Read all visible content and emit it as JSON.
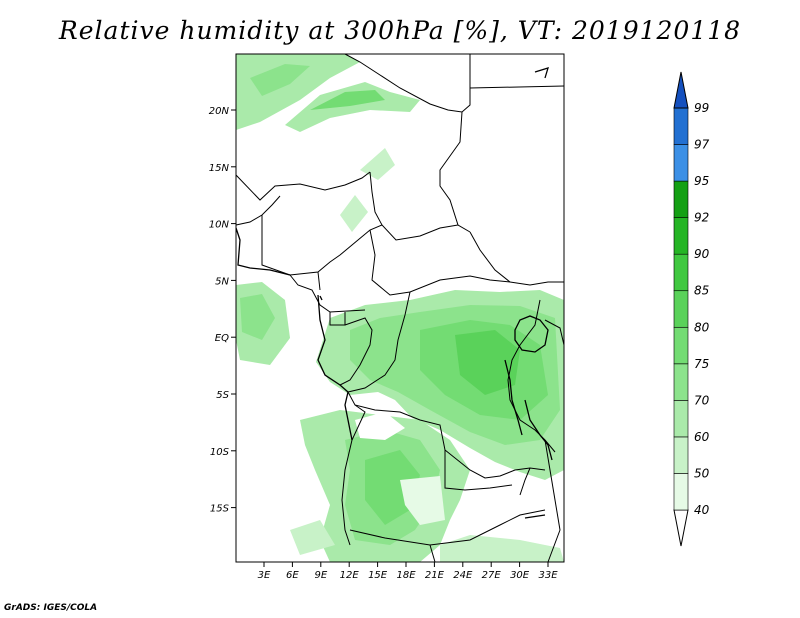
{
  "title": "Relative humidity at 300hPa [%], VT: 2019120118",
  "credit": "GrADS: IGES/COLA",
  "map": {
    "lat_ticks": [
      "20N",
      "15N",
      "10N",
      "5N",
      "EQ",
      "5S",
      "10S",
      "15S"
    ],
    "lon_ticks": [
      "3E",
      "6E",
      "9E",
      "12E",
      "15E",
      "18E",
      "21E",
      "24E",
      "27E",
      "30E",
      "33E"
    ]
  },
  "colorbar": {
    "levels": [
      "40",
      "50",
      "60",
      "70",
      "75",
      "80",
      "85",
      "90",
      "92",
      "95",
      "97",
      "99"
    ],
    "colors": [
      "#e6fae6",
      "#c8f2c8",
      "#aaeaaa",
      "#8ce38c",
      "#73dc73",
      "#5ad25a",
      "#40c840",
      "#25b525",
      "#14a014",
      "#3c90e6",
      "#2270d2",
      "#1450be"
    ]
  }
}
